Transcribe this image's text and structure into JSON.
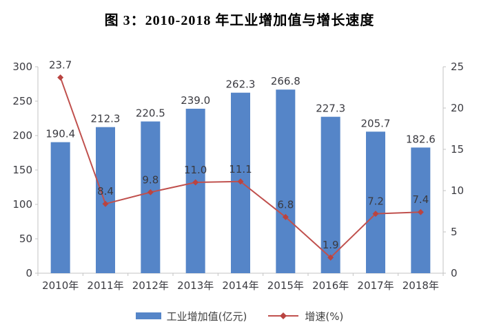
{
  "title": "图 3：2010-2018 年工业增加值与增长速度",
  "chart_data": {
    "type": "combo",
    "categories": [
      "2010年",
      "2011年",
      "2012年",
      "2013年",
      "2014年",
      "2015年",
      "2016年",
      "2017年",
      "2018年"
    ],
    "series": [
      {
        "name": "工业增加值(亿元)",
        "type": "bar",
        "axis": "left",
        "values": [
          190.4,
          212.3,
          220.5,
          239.0,
          262.3,
          266.8,
          227.3,
          205.7,
          182.6
        ]
      },
      {
        "name": "增速(%)",
        "type": "line",
        "axis": "right",
        "values": [
          23.7,
          8.4,
          9.8,
          11.0,
          11.1,
          6.8,
          1.9,
          7.2,
          7.4
        ]
      }
    ],
    "left_axis": {
      "min": 0,
      "max": 300,
      "ticks": [
        0,
        50,
        100,
        150,
        200,
        250,
        300
      ]
    },
    "right_axis": {
      "min": 0,
      "max": 25,
      "ticks": [
        0,
        5,
        10,
        15,
        20,
        25
      ]
    },
    "grid": false,
    "data_labels": true,
    "legend_position": "bottom"
  },
  "legend": {
    "bar_label": "工业增加值(亿元)",
    "line_label": "增速(%)"
  },
  "colors": {
    "bar": "#5585C8",
    "line": "#C0504D",
    "marker": "#B94441",
    "label_text": "#3a3a40",
    "axis": "#c3c3c3",
    "title": "#000000"
  }
}
